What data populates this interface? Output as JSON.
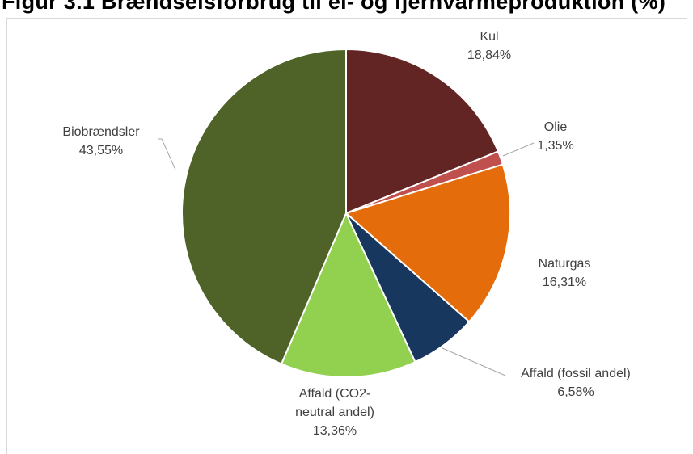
{
  "header": {
    "title": "Figur 3.1 Brændselsforbrug til el- og fjernvarmeproduktion (%)"
  },
  "chart_data": {
    "type": "pie",
    "title": "",
    "slices": [
      {
        "name": "Kul",
        "value": 18.84,
        "label_lines": [
          "Kul",
          "18,84%"
        ],
        "color": "#632523"
      },
      {
        "name": "Olie",
        "value": 1.35,
        "label_lines": [
          "Olie",
          "1,35%"
        ],
        "color": "#c0504d"
      },
      {
        "name": "Naturgas",
        "value": 16.31,
        "label_lines": [
          "Naturgas",
          "16,31%"
        ],
        "color": "#e46c0a"
      },
      {
        "name": "Affald (fossil andel)",
        "value": 6.58,
        "label_lines": [
          "Affald (fossil andel)",
          "6,58%"
        ],
        "color": "#17375e"
      },
      {
        "name": "Affald (CO2-neutral andel)",
        "value": 13.36,
        "label_lines": [
          "Affald (CO2-",
          "neutral andel)",
          "13,36%"
        ],
        "color": "#92d050"
      },
      {
        "name": "Biobrændsler",
        "value": 43.55,
        "label_lines": [
          "Biobrændsler",
          "43,55%"
        ],
        "color": "#4f6228"
      }
    ],
    "start_angle": "12 o'clock",
    "direction": "clockwise",
    "legend": "none"
  }
}
